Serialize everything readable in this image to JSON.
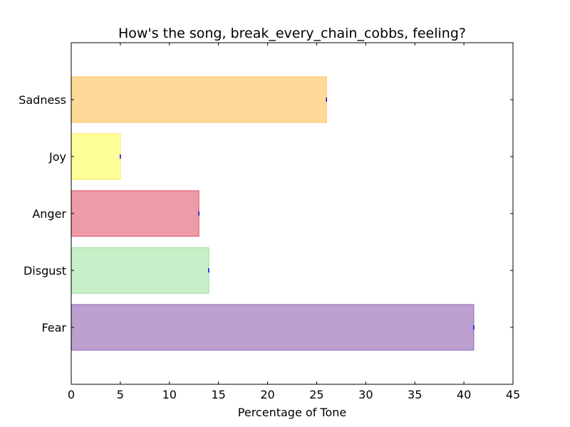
{
  "chart_data": {
    "type": "bar",
    "orientation": "horizontal",
    "title": "How's the song, break_every_chain_cobbs, feeling?",
    "xlabel": "Percentage of Tone",
    "ylabel": "",
    "categories": [
      "Fear",
      "Disgust",
      "Anger",
      "Joy",
      "Sadness"
    ],
    "values": [
      41,
      14,
      13,
      5,
      26
    ],
    "xlim": [
      0,
      45
    ],
    "xticks": [
      0,
      5,
      10,
      15,
      20,
      25,
      30,
      35,
      40,
      45
    ],
    "grid": false,
    "legend": "none",
    "bar_colors": [
      "#bba0d0",
      "#c8f0c8",
      "#ee9ba8",
      "#ffff99",
      "#ffd999"
    ],
    "bar_edge_colors": [
      "#9a70c0",
      "#a0e0a0",
      "#e06070",
      "#ffee66",
      "#ffc870"
    ],
    "error_marker_color": "#0000ff"
  }
}
